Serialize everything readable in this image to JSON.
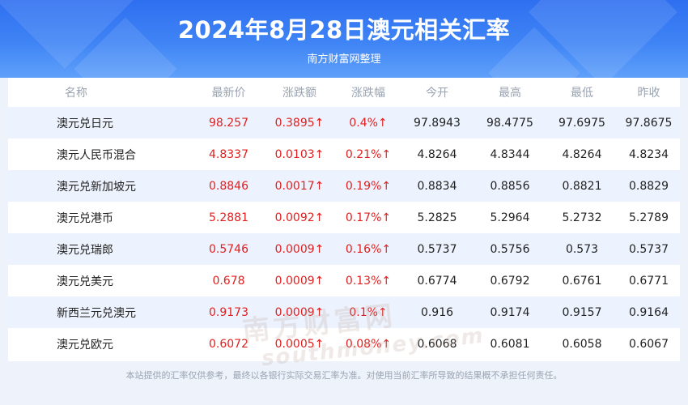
{
  "header": {
    "title": "2024年8月28日澳元相关汇率",
    "subtitle": "南方财富网整理"
  },
  "table": {
    "columns": [
      "名称",
      "最新价",
      "涨跌额",
      "涨跌幅",
      "今开",
      "最高",
      "最低",
      "昨收"
    ],
    "rows": [
      {
        "name": "澳元兑日元",
        "latest": "98.257",
        "change": "0.3895↑",
        "pct": "0.4%↑",
        "open": "97.8943",
        "high": "98.4775",
        "low": "97.6975",
        "prev": "97.8675"
      },
      {
        "name": "澳元人民币混合",
        "latest": "4.8337",
        "change": "0.0103↑",
        "pct": "0.21%↑",
        "open": "4.8264",
        "high": "4.8344",
        "low": "4.8264",
        "prev": "4.8234"
      },
      {
        "name": "澳元兑新加坡元",
        "latest": "0.8846",
        "change": "0.0017↑",
        "pct": "0.19%↑",
        "open": "0.8834",
        "high": "0.8856",
        "low": "0.8821",
        "prev": "0.8829"
      },
      {
        "name": "澳元兑港币",
        "latest": "5.2881",
        "change": "0.0092↑",
        "pct": "0.17%↑",
        "open": "5.2825",
        "high": "5.2964",
        "low": "5.2732",
        "prev": "5.2789"
      },
      {
        "name": "澳元兑瑞郎",
        "latest": "0.5746",
        "change": "0.0009↑",
        "pct": "0.16%↑",
        "open": "0.5737",
        "high": "0.5756",
        "low": "0.573",
        "prev": "0.5737"
      },
      {
        "name": "澳元兑美元",
        "latest": "0.678",
        "change": "0.0009↑",
        "pct": "0.13%↑",
        "open": "0.6774",
        "high": "0.6792",
        "low": "0.6761",
        "prev": "0.6771"
      },
      {
        "name": "新西兰元兑澳元",
        "latest": "0.9173",
        "change": "0.0009↑",
        "pct": "0.1%↑",
        "open": "0.916",
        "high": "0.9174",
        "low": "0.9157",
        "prev": "0.9164"
      },
      {
        "name": "澳元兑欧元",
        "latest": "0.6072",
        "change": "0.0005↑",
        "pct": "0.08%↑",
        "open": "0.6068",
        "high": "0.6081",
        "low": "0.6058",
        "prev": "0.6067"
      }
    ]
  },
  "watermark": {
    "cn": "南方财富网",
    "en": "southmoney.com"
  },
  "footer": "本站提供的汇率仅供参考，最终以各银行实际交易汇率为准。对使用当前汇率所导致的结果概不承担任何责任。",
  "colors": {
    "header_blue": "#3f84f5",
    "up_red": "#e02020",
    "stripe": "#edf3fe"
  }
}
